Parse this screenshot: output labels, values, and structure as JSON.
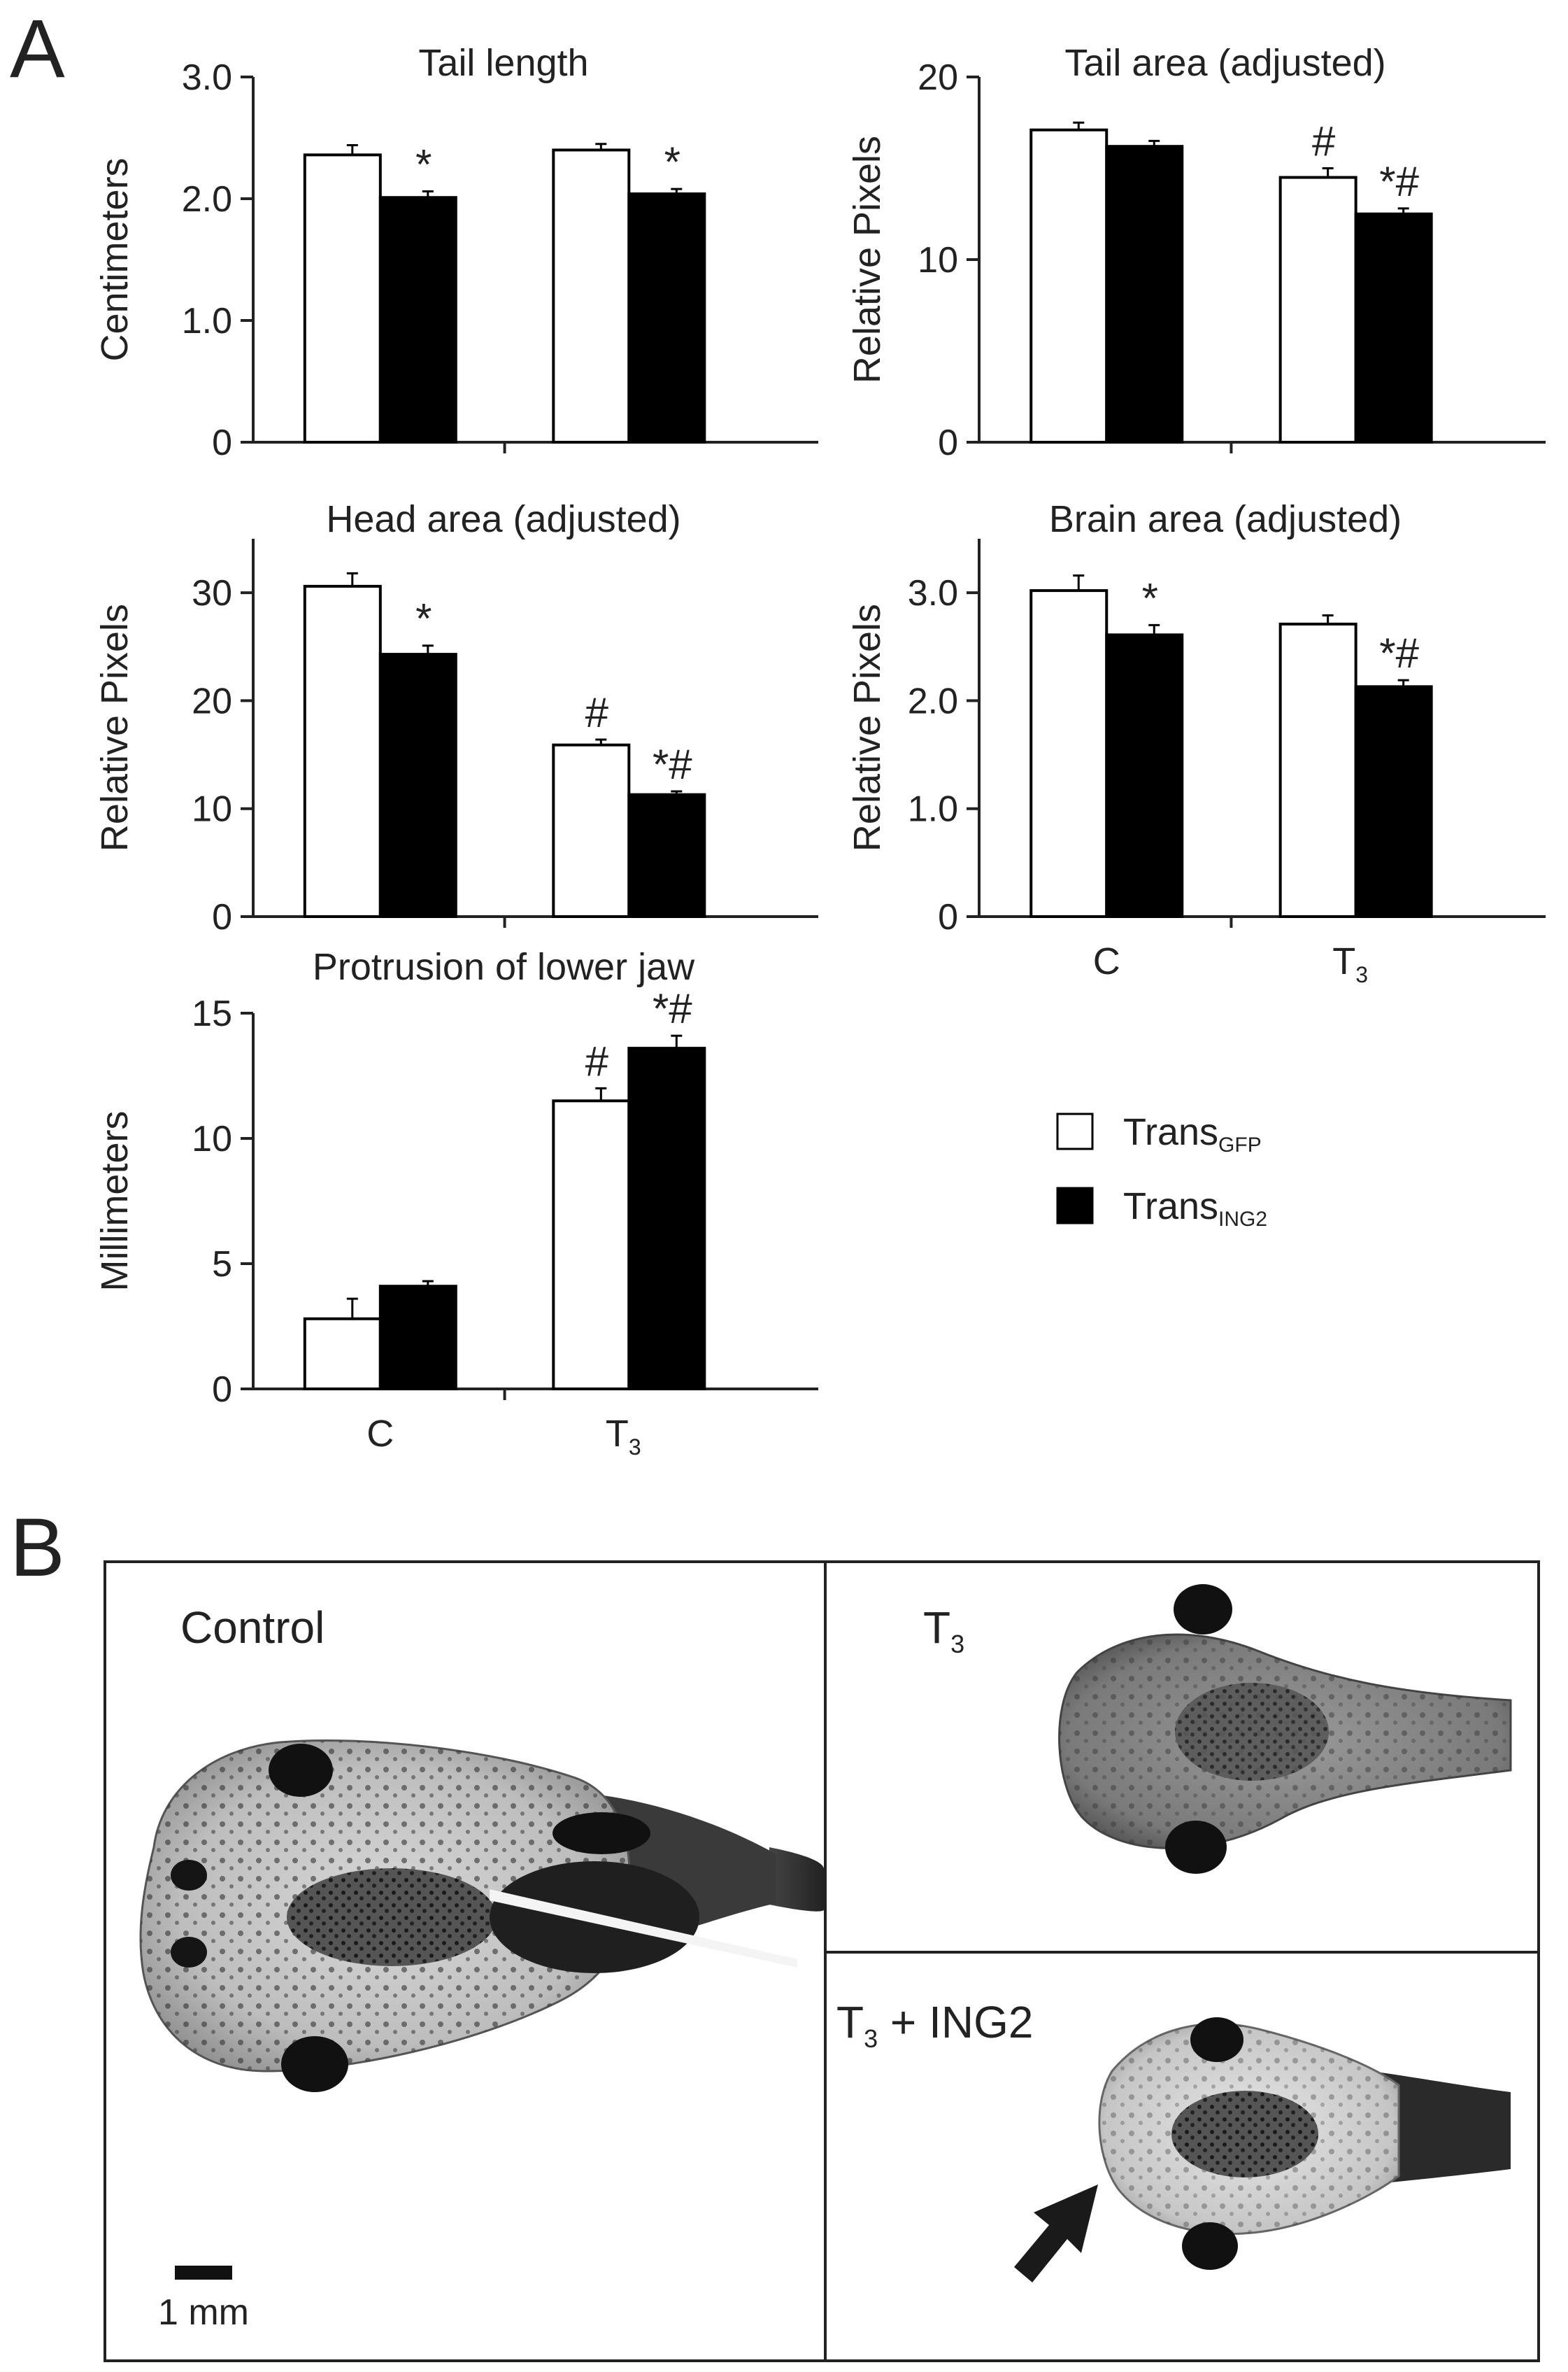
{
  "panel_a_label": "A",
  "panel_b_label": "B",
  "legend": [
    {
      "base": "Trans",
      "sub": "GFP",
      "color": "#ffffff"
    },
    {
      "base": "Trans",
      "sub": "ING2",
      "color": "#000000"
    }
  ],
  "chart_data": [
    {
      "type": "bar",
      "title": "Tail length",
      "ylabel": "Centimeters",
      "ylim": [
        0,
        3.0
      ],
      "yticks": [
        {
          "v": 0,
          "t": "0"
        },
        {
          "v": 1,
          "t": "1.0"
        },
        {
          "v": 2,
          "t": "2.0"
        },
        {
          "v": 3,
          "t": "3.0"
        }
      ],
      "categories": [
        {
          "base": "",
          "sub": ""
        },
        {
          "base": "",
          "sub": ""
        }
      ],
      "series": [
        {
          "values": [
            2.36,
            2.4
          ],
          "errors": [
            0.08,
            0.05
          ],
          "marks": [
            "",
            ""
          ]
        },
        {
          "values": [
            2.01,
            2.04
          ],
          "errors": [
            0.05,
            0.04
          ],
          "marks": [
            "*",
            "*"
          ]
        }
      ]
    },
    {
      "type": "bar",
      "title": "Tail area (adjusted)",
      "ylabel": "Relative Pixels",
      "ylim": [
        0,
        20
      ],
      "yticks": [
        {
          "v": 0,
          "t": "0"
        },
        {
          "v": 10,
          "t": "10"
        },
        {
          "v": 20,
          "t": "20"
        }
      ],
      "categories": [
        {
          "base": "",
          "sub": ""
        },
        {
          "base": "",
          "sub": ""
        }
      ],
      "series": [
        {
          "values": [
            17.1,
            14.5
          ],
          "errors": [
            0.4,
            0.5
          ],
          "marks": [
            "",
            "#"
          ]
        },
        {
          "values": [
            16.2,
            12.5
          ],
          "errors": [
            0.3,
            0.3
          ],
          "marks": [
            "",
            "*#"
          ]
        }
      ]
    },
    {
      "type": "bar",
      "title": "Head area (adjusted)",
      "ylabel": "Relative Pixels",
      "ylim": [
        0,
        35
      ],
      "yticks": [
        {
          "v": 0,
          "t": "0"
        },
        {
          "v": 10,
          "t": "10"
        },
        {
          "v": 20,
          "t": "20"
        },
        {
          "v": 30,
          "t": "30"
        }
      ],
      "categories": [
        {
          "base": "",
          "sub": ""
        },
        {
          "base": "",
          "sub": ""
        }
      ],
      "series": [
        {
          "values": [
            30.6,
            15.9
          ],
          "errors": [
            1.2,
            0.5
          ],
          "marks": [
            "",
            "#"
          ]
        },
        {
          "values": [
            24.3,
            11.3
          ],
          "errors": [
            0.8,
            0.3
          ],
          "marks": [
            "*",
            "*#"
          ]
        }
      ]
    },
    {
      "type": "bar",
      "title": "Brain area (adjusted)",
      "ylabel": "Relative Pixels",
      "ylim": [
        0,
        3.5
      ],
      "yticks": [
        {
          "v": 0,
          "t": "0"
        },
        {
          "v": 1,
          "t": "1.0"
        },
        {
          "v": 2,
          "t": "2.0"
        },
        {
          "v": 3,
          "t": "3.0"
        }
      ],
      "categories": [
        {
          "base": "C",
          "sub": ""
        },
        {
          "base": "T",
          "sub": "3"
        }
      ],
      "series": [
        {
          "values": [
            3.02,
            2.71
          ],
          "errors": [
            0.14,
            0.08
          ],
          "marks": [
            "",
            ""
          ]
        },
        {
          "values": [
            2.61,
            2.13
          ],
          "errors": [
            0.09,
            0.06
          ],
          "marks": [
            "*",
            "*#"
          ]
        }
      ]
    },
    {
      "type": "bar",
      "title": "Protrusion of lower jaw",
      "ylabel": "Millimeters",
      "ylim": [
        0,
        15
      ],
      "yticks": [
        {
          "v": 0,
          "t": "0"
        },
        {
          "v": 5,
          "t": "5"
        },
        {
          "v": 10,
          "t": "10"
        },
        {
          "v": 15,
          "t": "15"
        }
      ],
      "categories": [
        {
          "base": "C",
          "sub": ""
        },
        {
          "base": "T",
          "sub": "3"
        }
      ],
      "series": [
        {
          "values": [
            2.8,
            11.5
          ],
          "errors": [
            0.8,
            0.5
          ],
          "marks": [
            "",
            "#"
          ]
        },
        {
          "values": [
            4.1,
            13.6
          ],
          "errors": [
            0.2,
            0.5
          ],
          "marks": [
            "",
            "*#"
          ]
        }
      ]
    }
  ],
  "photos": [
    {
      "label": "Control",
      "label_sub": "",
      "label_tail": ""
    },
    {
      "label": "T",
      "label_sub": "3",
      "label_tail": ""
    },
    {
      "label": "T",
      "label_sub": "3",
      "label_tail": " + ING2"
    }
  ],
  "scale_bar": "1 mm"
}
